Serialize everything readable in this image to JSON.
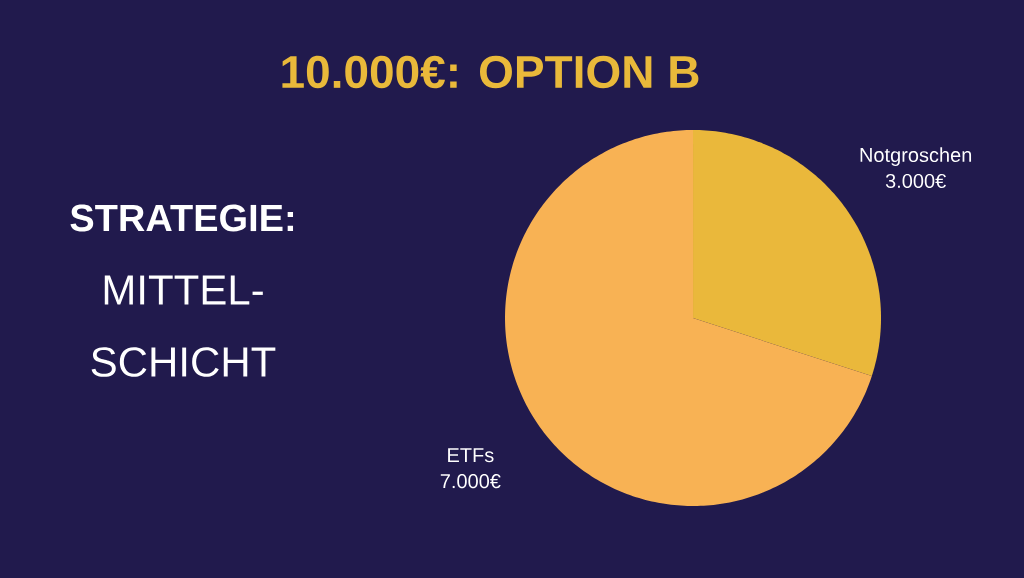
{
  "chart_data": {
    "type": "pie",
    "title": "10.000€: OPTION B",
    "categories": [
      "Notgroschen",
      "ETFs"
    ],
    "values": [
      3000,
      7000
    ],
    "value_labels": [
      "3.000€",
      "7.000€"
    ],
    "colors": [
      "#eab83b",
      "#f8b254"
    ],
    "annotations": [
      "STRATEGIE:",
      "MITTEL-",
      "SCHICHT"
    ]
  }
}
